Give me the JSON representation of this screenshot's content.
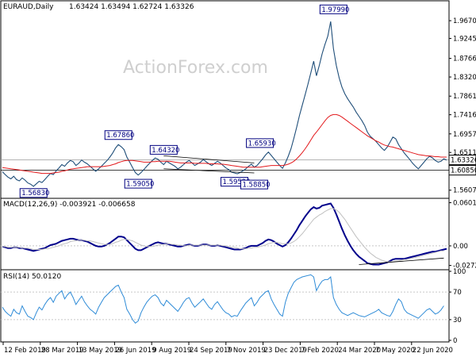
{
  "chart_data": [
    {
      "type": "line",
      "pane": "price",
      "title": "EURAUD,Daily",
      "ohlc_header": "1.63424 1.63494 1.62724 1.63326",
      "watermark": "ActionForex.com",
      "ylim": [
        1.545,
        1.99
      ],
      "y_ticks": [
        "1.96705",
        "1.92455",
        "1.87660",
        "1.83205",
        "1.78615",
        "1.74160",
        "1.69570",
        "1.65115",
        "1.60525",
        "1.56075"
      ],
      "y_tick_values": [
        1.96705,
        1.92455,
        1.8766,
        1.83205,
        1.78615,
        1.7416,
        1.6957,
        1.65115,
        1.60525,
        1.56075
      ],
      "current_price": "1.63326",
      "current_price_value": 1.63326,
      "support_line_label": "1.60850",
      "support_line_value": 1.6085,
      "annotations": [
        {
          "label": "1.56830",
          "value": 1.5683,
          "index": 11
        },
        {
          "label": "1.67860",
          "value": 1.6786,
          "index": 41
        },
        {
          "label": "1.59050",
          "value": 1.5905,
          "index": 48
        },
        {
          "label": "1.64320",
          "value": 1.6432,
          "index": 57
        },
        {
          "label": "1.59520",
          "value": 1.5952,
          "index": 82
        },
        {
          "label": "1.58850",
          "value": 1.5885,
          "index": 89
        },
        {
          "label": "1.65930",
          "value": 1.6593,
          "index": 91
        },
        {
          "label": "1.97990",
          "value": 1.9799,
          "index": 117
        }
      ],
      "series": [
        {
          "color": "#1f4e79",
          "values": [
            1.605,
            1.598,
            1.592,
            1.588,
            1.594,
            1.586,
            1.583,
            1.59,
            1.585,
            1.578,
            1.575,
            1.57,
            1.576,
            1.582,
            1.579,
            1.586,
            1.594,
            1.601,
            1.598,
            1.607,
            1.614,
            1.622,
            1.618,
            1.626,
            1.632,
            1.629,
            1.62,
            1.625,
            1.633,
            1.628,
            1.624,
            1.618,
            1.612,
            1.606,
            1.612,
            1.618,
            1.625,
            1.632,
            1.64,
            1.65,
            1.662,
            1.67,
            1.665,
            1.658,
            1.64,
            1.628,
            1.615,
            1.603,
            1.597,
            1.603,
            1.61,
            1.618,
            1.625,
            1.632,
            1.638,
            1.635,
            1.628,
            1.622,
            1.63,
            1.626,
            1.622,
            1.618,
            1.612,
            1.616,
            1.622,
            1.628,
            1.632,
            1.626,
            1.62,
            1.624,
            1.628,
            1.634,
            1.629,
            1.624,
            1.62,
            1.625,
            1.63,
            1.626,
            1.62,
            1.614,
            1.61,
            1.604,
            1.602,
            1.6,
            1.603,
            1.607,
            1.612,
            1.618,
            1.623,
            1.616,
            1.62,
            1.628,
            1.636,
            1.645,
            1.652,
            1.644,
            1.636,
            1.628,
            1.62,
            1.613,
            1.626,
            1.642,
            1.66,
            1.685,
            1.712,
            1.74,
            1.765,
            1.79,
            1.815,
            1.842,
            1.87,
            1.835,
            1.86,
            1.888,
            1.91,
            1.93,
            1.965,
            1.9,
            1.86,
            1.83,
            1.808,
            1.792,
            1.78,
            1.77,
            1.76,
            1.748,
            1.738,
            1.728,
            1.716,
            1.7,
            1.69,
            1.684,
            1.678,
            1.67,
            1.662,
            1.656,
            1.664,
            1.676,
            1.688,
            1.684,
            1.67,
            1.66,
            1.65,
            1.642,
            1.634,
            1.625,
            1.618,
            1.612,
            1.62,
            1.628,
            1.636,
            1.642,
            1.638,
            1.632,
            1.628,
            1.63,
            1.636,
            1.633
          ]
        },
        {
          "color": "#e3191c",
          "values": [
            1.615,
            1.614,
            1.613,
            1.612,
            1.611,
            1.61,
            1.609,
            1.608,
            1.607,
            1.606,
            1.605,
            1.604,
            1.603,
            1.602,
            1.601,
            1.601,
            1.601,
            1.601,
            1.602,
            1.603,
            1.604,
            1.606,
            1.607,
            1.609,
            1.611,
            1.612,
            1.613,
            1.614,
            1.615,
            1.616,
            1.617,
            1.617,
            1.617,
            1.617,
            1.617,
            1.617,
            1.618,
            1.619,
            1.62,
            1.622,
            1.624,
            1.627,
            1.629,
            1.631,
            1.632,
            1.632,
            1.632,
            1.631,
            1.63,
            1.629,
            1.628,
            1.628,
            1.628,
            1.629,
            1.629,
            1.63,
            1.63,
            1.63,
            1.63,
            1.63,
            1.629,
            1.628,
            1.627,
            1.626,
            1.626,
            1.626,
            1.626,
            1.626,
            1.625,
            1.625,
            1.625,
            1.625,
            1.625,
            1.624,
            1.624,
            1.624,
            1.624,
            1.623,
            1.623,
            1.622,
            1.621,
            1.62,
            1.619,
            1.618,
            1.617,
            1.616,
            1.616,
            1.616,
            1.616,
            1.616,
            1.616,
            1.616,
            1.617,
            1.618,
            1.619,
            1.62,
            1.62,
            1.62,
            1.62,
            1.62,
            1.621,
            1.623,
            1.626,
            1.63,
            1.636,
            1.643,
            1.651,
            1.66,
            1.67,
            1.681,
            1.692,
            1.7,
            1.709,
            1.718,
            1.727,
            1.735,
            1.74,
            1.742,
            1.742,
            1.74,
            1.736,
            1.731,
            1.726,
            1.721,
            1.716,
            1.711,
            1.706,
            1.701,
            1.696,
            1.691,
            1.687,
            1.683,
            1.679,
            1.676,
            1.672,
            1.669,
            1.667,
            1.665,
            1.664,
            1.662,
            1.66,
            1.658,
            1.656,
            1.654,
            1.652,
            1.65,
            1.648,
            1.646,
            1.645,
            1.644,
            1.643,
            1.643,
            1.642,
            1.641,
            1.641,
            1.64,
            1.64,
            1.64
          ]
        }
      ],
      "trendlines": [
        {
          "from": [
            57,
            1.6432
          ],
          "to": [
            89,
            1.626
          ]
        },
        {
          "from": [
            57,
            1.612
          ],
          "to": [
            89,
            1.602
          ]
        }
      ],
      "x_ticks": [
        "12 Feb 2019",
        "28 Mar 2019",
        "13 May 2019",
        "26 Jun 2019",
        "9 Aug 2019",
        "24 Sep 2019",
        "7 Nov 2019",
        "23 Dec 2019",
        "7 Feb 2020",
        "24 Mar 2020",
        "7 May 2020",
        "22 Jun 2020"
      ]
    },
    {
      "type": "line",
      "pane": "macd",
      "title": "MACD(12,26,9) -0.003921 -0.006658",
      "ylim": [
        -0.031,
        0.064
      ],
      "y_ticks": [
        "0.060165",
        "0.00",
        "-0.02725"
      ],
      "y_tick_values": [
        0.060165,
        0.0,
        -0.02725
      ],
      "series": [
        {
          "color": "#00008b",
          "values": [
            -0.001,
            -0.002,
            -0.003,
            -0.003,
            -0.002,
            -0.002,
            -0.003,
            -0.003,
            -0.004,
            -0.005,
            -0.006,
            -0.007,
            -0.006,
            -0.005,
            -0.004,
            -0.003,
            -0.001,
            0.001,
            0.002,
            0.003,
            0.005,
            0.007,
            0.008,
            0.009,
            0.01,
            0.01,
            0.009,
            0.008,
            0.008,
            0.007,
            0.006,
            0.004,
            0.002,
            0.0,
            -0.001,
            -0.001,
            0.0,
            0.002,
            0.004,
            0.007,
            0.01,
            0.013,
            0.013,
            0.012,
            0.008,
            0.004,
            0.0,
            -0.004,
            -0.006,
            -0.006,
            -0.004,
            -0.002,
            0.0,
            0.002,
            0.004,
            0.005,
            0.004,
            0.003,
            0.003,
            0.002,
            0.001,
            0.0,
            -0.001,
            -0.001,
            0.0,
            0.001,
            0.002,
            0.001,
            0.0,
            0.0,
            0.001,
            0.002,
            0.002,
            0.001,
            0.0,
            0.0,
            0.001,
            0.0,
            -0.001,
            -0.002,
            -0.003,
            -0.004,
            -0.005,
            -0.005,
            -0.005,
            -0.004,
            -0.003,
            -0.001,
            0.0,
            0.0,
            0.0,
            0.002,
            0.004,
            0.007,
            0.009,
            0.008,
            0.006,
            0.003,
            0.001,
            -0.001,
            0.001,
            0.005,
            0.01,
            0.016,
            0.022,
            0.029,
            0.035,
            0.041,
            0.046,
            0.051,
            0.054,
            0.052,
            0.053,
            0.056,
            0.057,
            0.058,
            0.059,
            0.053,
            0.044,
            0.034,
            0.024,
            0.015,
            0.007,
            0.0,
            -0.006,
            -0.011,
            -0.015,
            -0.018,
            -0.021,
            -0.024,
            -0.025,
            -0.026,
            -0.026,
            -0.026,
            -0.025,
            -0.024,
            -0.023,
            -0.021,
            -0.019,
            -0.018,
            -0.018,
            -0.018,
            -0.018,
            -0.017,
            -0.016,
            -0.015,
            -0.014,
            -0.013,
            -0.012,
            -0.011,
            -0.01,
            -0.009,
            -0.008,
            -0.008,
            -0.007,
            -0.006,
            -0.005,
            -0.004
          ]
        },
        {
          "color": "#c0c0c0",
          "values": [
            -0.001,
            -0.001,
            -0.002,
            -0.002,
            -0.002,
            -0.002,
            -0.002,
            -0.003,
            -0.003,
            -0.003,
            -0.004,
            -0.005,
            -0.005,
            -0.005,
            -0.005,
            -0.004,
            -0.004,
            -0.003,
            -0.002,
            -0.001,
            0.0,
            0.002,
            0.003,
            0.004,
            0.006,
            0.007,
            0.007,
            0.008,
            0.008,
            0.008,
            0.007,
            0.007,
            0.006,
            0.005,
            0.004,
            0.003,
            0.002,
            0.002,
            0.002,
            0.003,
            0.005,
            0.006,
            0.008,
            0.009,
            0.009,
            0.008,
            0.007,
            0.005,
            0.003,
            0.001,
            0.0,
            -0.001,
            -0.001,
            -0.001,
            0.0,
            0.001,
            0.002,
            0.002,
            0.003,
            0.003,
            0.002,
            0.002,
            0.001,
            0.001,
            0.0,
            0.0,
            0.001,
            0.001,
            0.001,
            0.001,
            0.001,
            0.001,
            0.001,
            0.001,
            0.001,
            0.001,
            0.001,
            0.001,
            0.0,
            0.0,
            -0.001,
            -0.002,
            -0.002,
            -0.003,
            -0.004,
            -0.004,
            -0.004,
            -0.003,
            -0.003,
            -0.002,
            -0.002,
            -0.001,
            0.0,
            0.001,
            0.003,
            0.004,
            0.005,
            0.005,
            0.004,
            0.003,
            0.003,
            0.003,
            0.004,
            0.006,
            0.009,
            0.013,
            0.017,
            0.022,
            0.027,
            0.032,
            0.037,
            0.04,
            0.043,
            0.045,
            0.048,
            0.05,
            0.052,
            0.052,
            0.05,
            0.047,
            0.042,
            0.037,
            0.031,
            0.025,
            0.019,
            0.013,
            0.008,
            0.003,
            -0.002,
            -0.006,
            -0.01,
            -0.013,
            -0.016,
            -0.018,
            -0.02,
            -0.021,
            -0.022,
            -0.022,
            -0.022,
            -0.021,
            -0.021,
            -0.02,
            -0.019,
            -0.019,
            -0.018,
            -0.017,
            -0.016,
            -0.015,
            -0.014,
            -0.013,
            -0.012,
            -0.011,
            -0.01,
            -0.009,
            -0.008,
            -0.007,
            -0.007
          ]
        }
      ],
      "trendlines": [
        {
          "from": [
            126,
            -0.026
          ],
          "to": [
            156,
            -0.017
          ]
        }
      ]
    },
    {
      "type": "line",
      "pane": "rsi",
      "title": "RSI(14) 50.0120",
      "ylim": [
        0,
        100
      ],
      "y_ticks": [
        "100",
        "70",
        "30",
        "0"
      ],
      "y_tick_values": [
        100,
        70,
        30,
        0
      ],
      "series": [
        {
          "color": "#2e8bd7",
          "values": [
            48,
            42,
            38,
            35,
            45,
            40,
            38,
            50,
            42,
            35,
            33,
            30,
            40,
            48,
            44,
            52,
            58,
            62,
            55,
            64,
            68,
            72,
            60,
            66,
            70,
            62,
            52,
            58,
            64,
            56,
            50,
            45,
            42,
            38,
            48,
            55,
            62,
            66,
            70,
            74,
            78,
            80,
            70,
            62,
            45,
            38,
            30,
            25,
            28,
            40,
            48,
            55,
            60,
            64,
            66,
            62,
            54,
            50,
            58,
            54,
            50,
            46,
            42,
            48,
            55,
            60,
            62,
            54,
            48,
            52,
            56,
            60,
            54,
            48,
            45,
            52,
            56,
            50,
            44,
            40,
            38,
            34,
            36,
            35,
            42,
            48,
            54,
            58,
            62,
            50,
            55,
            62,
            66,
            70,
            72,
            60,
            52,
            45,
            38,
            35,
            55,
            68,
            76,
            84,
            88,
            90,
            92,
            93,
            94,
            95,
            92,
            72,
            80,
            86,
            88,
            88,
            92,
            62,
            52,
            45,
            40,
            38,
            36,
            38,
            40,
            38,
            36,
            35,
            34,
            36,
            38,
            40,
            42,
            45,
            40,
            38,
            36,
            35,
            42,
            52,
            60,
            56,
            45,
            40,
            38,
            36,
            34,
            32,
            36,
            40,
            44,
            46,
            42,
            38,
            40,
            44,
            50
          ]
        }
      ]
    }
  ]
}
